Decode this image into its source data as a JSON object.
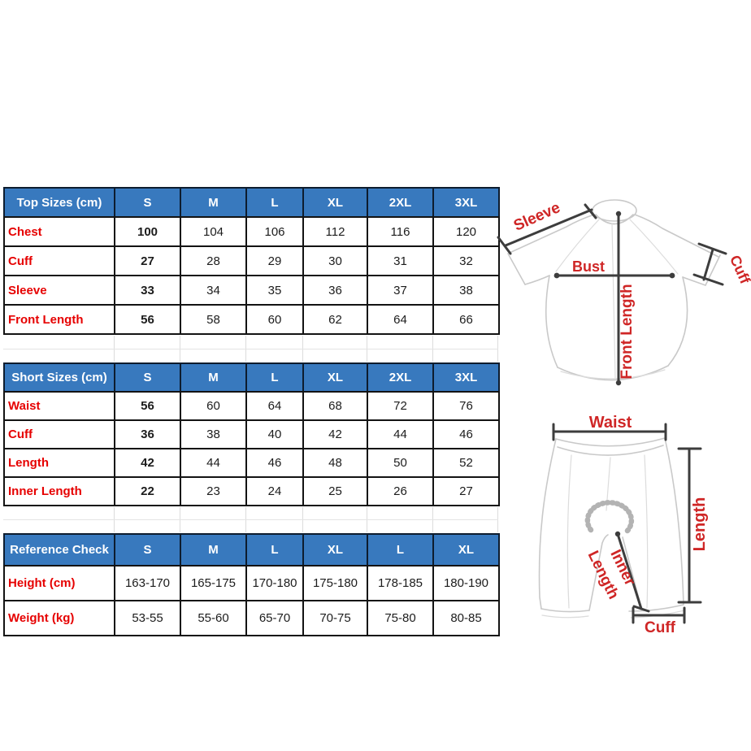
{
  "page": {
    "background": "#ffffff"
  },
  "colors": {
    "header_bg": "#3879be",
    "header_text": "#ffffff",
    "table_border": "#131313",
    "row_label_red": "#e60000",
    "diagram_label_red": "#cf2626",
    "garment_outline_gray": "#c9c9c9",
    "measure_line_dark": "#3d3d3d",
    "faint_grid_gray": "#dcdcdc"
  },
  "tables": [
    {
      "id": "top-sizes-table",
      "header": [
        "Top Sizes (cm)",
        "S",
        "M",
        "L",
        "XL",
        "2XL",
        "3XL"
      ],
      "bold_first_value": true,
      "rows": [
        {
          "label": "Chest",
          "values": [
            "100",
            "104",
            "106",
            "112",
            "116",
            "120"
          ]
        },
        {
          "label": "Cuff",
          "values": [
            "27",
            "28",
            "29",
            "30",
            "31",
            "32"
          ]
        },
        {
          "label": "Sleeve",
          "values": [
            "33",
            "34",
            "35",
            "36",
            "37",
            "38"
          ]
        },
        {
          "label": "Front Length",
          "values": [
            "56",
            "58",
            "60",
            "62",
            "64",
            "66"
          ]
        }
      ]
    },
    {
      "id": "short-sizes-table",
      "header": [
        "Short Sizes (cm)",
        "S",
        "M",
        "L",
        "XL",
        "2XL",
        "3XL"
      ],
      "bold_first_value": true,
      "rows": [
        {
          "label": "Waist",
          "values": [
            "56",
            "60",
            "64",
            "68",
            "72",
            "76"
          ]
        },
        {
          "label": "Cuff",
          "values": [
            "36",
            "38",
            "40",
            "42",
            "44",
            "46"
          ]
        },
        {
          "label": "Length",
          "values": [
            "42",
            "44",
            "46",
            "48",
            "50",
            "52"
          ]
        },
        {
          "label": "Inner Length",
          "values": [
            "22",
            "23",
            "24",
            "25",
            "26",
            "27"
          ]
        }
      ]
    },
    {
      "id": "reference-check-table",
      "header": [
        "Reference Check",
        "S",
        "M",
        "L",
        "XL",
        "L",
        "XL"
      ],
      "bold_first_value": false,
      "rows": [
        {
          "label": "Height (cm)",
          "values": [
            "163-170",
            "165-175",
            "170-180",
            "175-180",
            "178-185",
            "180-190"
          ]
        },
        {
          "label": "Weight (kg)",
          "values": [
            "53-55",
            "55-60",
            "65-70",
            "70-75",
            "75-80",
            "80-85"
          ]
        }
      ]
    }
  ],
  "diagram": {
    "jersey": {
      "sleeve_label": "Sleeve",
      "bust_label": "Bust",
      "front_length_label": "Front Length",
      "cuff_label": "Cuff"
    },
    "shorts": {
      "waist_label": "Waist",
      "length_label": "Length",
      "inner_length_line1": "Inner",
      "inner_length_line2": "Length",
      "cuff_label": "Cuff"
    }
  }
}
